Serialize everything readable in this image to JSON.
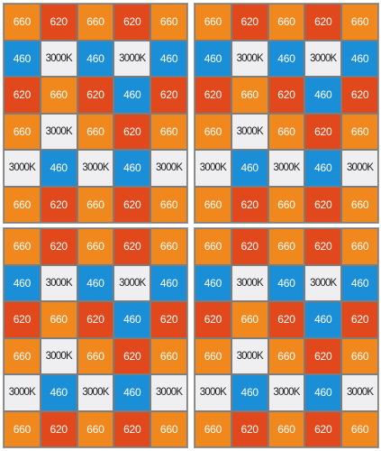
{
  "colors": {
    "660": "#f0881e",
    "620": "#e1491c",
    "460": "#1a8ed6",
    "3000K": "#efeff1"
  },
  "panels": [
    {
      "rows": [
        [
          "660",
          "620",
          "660",
          "620",
          "660"
        ],
        [
          "460",
          "3000K",
          "460",
          "3000K",
          "460"
        ],
        [
          "620",
          "660",
          "620",
          "460",
          "620"
        ],
        [
          "660",
          "3000K",
          "660",
          "620",
          "660"
        ],
        [
          "3000K",
          "460",
          "3000K",
          "460",
          "3000K"
        ],
        [
          "660",
          "620",
          "660",
          "620",
          "660"
        ]
      ]
    },
    {
      "rows": [
        [
          "660",
          "620",
          "660",
          "620",
          "660"
        ],
        [
          "460",
          "3000K",
          "460",
          "3000K",
          "460"
        ],
        [
          "620",
          "660",
          "620",
          "460",
          "620"
        ],
        [
          "660",
          "3000K",
          "660",
          "620",
          "660"
        ],
        [
          "3000K",
          "460",
          "3000K",
          "460",
          "3000K"
        ],
        [
          "660",
          "620",
          "660",
          "620",
          "660"
        ]
      ]
    },
    {
      "rows": [
        [
          "660",
          "620",
          "660",
          "620",
          "660"
        ],
        [
          "460",
          "3000K",
          "460",
          "3000K",
          "460"
        ],
        [
          "620",
          "660",
          "620",
          "460",
          "620"
        ],
        [
          "660",
          "3000K",
          "660",
          "620",
          "660"
        ],
        [
          "3000K",
          "460",
          "3000K",
          "460",
          "3000K"
        ],
        [
          "660",
          "620",
          "660",
          "620",
          "660"
        ]
      ]
    },
    {
      "rows": [
        [
          "660",
          "620",
          "660",
          "620",
          "660"
        ],
        [
          "460",
          "3000K",
          "460",
          "3000K",
          "460"
        ],
        [
          "620",
          "660",
          "620",
          "460",
          "620"
        ],
        [
          "660",
          "3000K",
          "660",
          "620",
          "660"
        ],
        [
          "3000K",
          "460",
          "3000K",
          "460",
          "3000K"
        ],
        [
          "660",
          "620",
          "660",
          "620",
          "660"
        ]
      ]
    }
  ]
}
